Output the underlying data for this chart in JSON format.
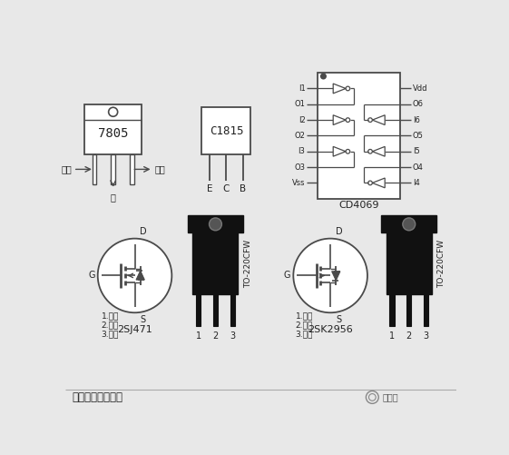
{
  "bg_color": "#e8e8e8",
  "line_color": "#4a4a4a",
  "dark_color": "#111111",
  "text_color": "#222222",
  "white": "#ffffff",
  "title_bottom": "逆变器所用元器件",
  "label_7805": "7805",
  "label_c1815": "C1815",
  "label_cd4069": "CD4069",
  "label_2sj471": "2SJ471",
  "label_2sk2956": "2SK2956",
  "label_to220": "TO-220CFW",
  "pins_ecb": [
    "E",
    "C",
    "B"
  ],
  "cd4069_left_pins": [
    "I1",
    "O1",
    "I2",
    "O2",
    "I3",
    "O3",
    "Vss"
  ],
  "cd4069_right_pins": [
    "Vdd",
    "O6",
    "I6",
    "O5",
    "I5",
    "O4",
    "I4"
  ],
  "mos_labels": [
    "1.栅极",
    "2.漏极",
    "3.源极"
  ],
  "input_label": "输入",
  "output_label": "输出",
  "ground_label": "地",
  "D_label": "D",
  "S_label": "S",
  "G_label": "G"
}
